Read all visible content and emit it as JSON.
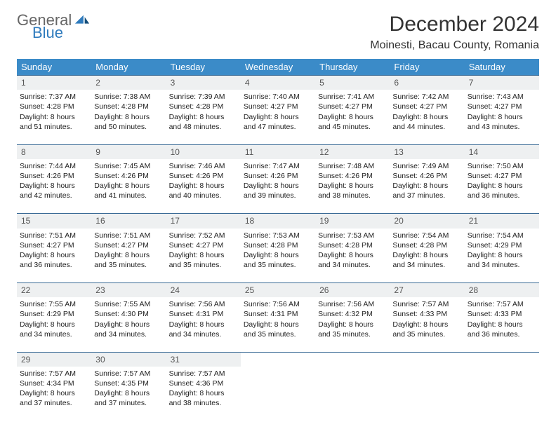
{
  "logo": {
    "general": "General",
    "blue": "Blue"
  },
  "title": "December 2024",
  "location": "Moinesti, Bacau County, Romania",
  "colors": {
    "header_bg": "#3b8bc8",
    "header_text": "#ffffff",
    "daynum_bg": "#eef0f1",
    "daynum_border": "#396a95",
    "logo_gray": "#666666",
    "logo_blue": "#2f7bbd"
  },
  "weekdays": [
    "Sunday",
    "Monday",
    "Tuesday",
    "Wednesday",
    "Thursday",
    "Friday",
    "Saturday"
  ],
  "weeks": [
    [
      {
        "n": "1",
        "sr": "7:37 AM",
        "ss": "4:28 PM",
        "dh": "8",
        "dm": "51"
      },
      {
        "n": "2",
        "sr": "7:38 AM",
        "ss": "4:28 PM",
        "dh": "8",
        "dm": "50"
      },
      {
        "n": "3",
        "sr": "7:39 AM",
        "ss": "4:28 PM",
        "dh": "8",
        "dm": "48"
      },
      {
        "n": "4",
        "sr": "7:40 AM",
        "ss": "4:27 PM",
        "dh": "8",
        "dm": "47"
      },
      {
        "n": "5",
        "sr": "7:41 AM",
        "ss": "4:27 PM",
        "dh": "8",
        "dm": "45"
      },
      {
        "n": "6",
        "sr": "7:42 AM",
        "ss": "4:27 PM",
        "dh": "8",
        "dm": "44"
      },
      {
        "n": "7",
        "sr": "7:43 AM",
        "ss": "4:27 PM",
        "dh": "8",
        "dm": "43"
      }
    ],
    [
      {
        "n": "8",
        "sr": "7:44 AM",
        "ss": "4:26 PM",
        "dh": "8",
        "dm": "42"
      },
      {
        "n": "9",
        "sr": "7:45 AM",
        "ss": "4:26 PM",
        "dh": "8",
        "dm": "41"
      },
      {
        "n": "10",
        "sr": "7:46 AM",
        "ss": "4:26 PM",
        "dh": "8",
        "dm": "40"
      },
      {
        "n": "11",
        "sr": "7:47 AM",
        "ss": "4:26 PM",
        "dh": "8",
        "dm": "39"
      },
      {
        "n": "12",
        "sr": "7:48 AM",
        "ss": "4:26 PM",
        "dh": "8",
        "dm": "38"
      },
      {
        "n": "13",
        "sr": "7:49 AM",
        "ss": "4:26 PM",
        "dh": "8",
        "dm": "37"
      },
      {
        "n": "14",
        "sr": "7:50 AM",
        "ss": "4:27 PM",
        "dh": "8",
        "dm": "36"
      }
    ],
    [
      {
        "n": "15",
        "sr": "7:51 AM",
        "ss": "4:27 PM",
        "dh": "8",
        "dm": "36"
      },
      {
        "n": "16",
        "sr": "7:51 AM",
        "ss": "4:27 PM",
        "dh": "8",
        "dm": "35"
      },
      {
        "n": "17",
        "sr": "7:52 AM",
        "ss": "4:27 PM",
        "dh": "8",
        "dm": "35"
      },
      {
        "n": "18",
        "sr": "7:53 AM",
        "ss": "4:28 PM",
        "dh": "8",
        "dm": "35"
      },
      {
        "n": "19",
        "sr": "7:53 AM",
        "ss": "4:28 PM",
        "dh": "8",
        "dm": "34"
      },
      {
        "n": "20",
        "sr": "7:54 AM",
        "ss": "4:28 PM",
        "dh": "8",
        "dm": "34"
      },
      {
        "n": "21",
        "sr": "7:54 AM",
        "ss": "4:29 PM",
        "dh": "8",
        "dm": "34"
      }
    ],
    [
      {
        "n": "22",
        "sr": "7:55 AM",
        "ss": "4:29 PM",
        "dh": "8",
        "dm": "34"
      },
      {
        "n": "23",
        "sr": "7:55 AM",
        "ss": "4:30 PM",
        "dh": "8",
        "dm": "34"
      },
      {
        "n": "24",
        "sr": "7:56 AM",
        "ss": "4:31 PM",
        "dh": "8",
        "dm": "34"
      },
      {
        "n": "25",
        "sr": "7:56 AM",
        "ss": "4:31 PM",
        "dh": "8",
        "dm": "35"
      },
      {
        "n": "26",
        "sr": "7:56 AM",
        "ss": "4:32 PM",
        "dh": "8",
        "dm": "35"
      },
      {
        "n": "27",
        "sr": "7:57 AM",
        "ss": "4:33 PM",
        "dh": "8",
        "dm": "35"
      },
      {
        "n": "28",
        "sr": "7:57 AM",
        "ss": "4:33 PM",
        "dh": "8",
        "dm": "36"
      }
    ],
    [
      {
        "n": "29",
        "sr": "7:57 AM",
        "ss": "4:34 PM",
        "dh": "8",
        "dm": "37"
      },
      {
        "n": "30",
        "sr": "7:57 AM",
        "ss": "4:35 PM",
        "dh": "8",
        "dm": "37"
      },
      {
        "n": "31",
        "sr": "7:57 AM",
        "ss": "4:36 PM",
        "dh": "8",
        "dm": "38"
      },
      null,
      null,
      null,
      null
    ]
  ],
  "labels": {
    "sunrise": "Sunrise:",
    "sunset": "Sunset:",
    "daylight": "Daylight:",
    "hours": "hours",
    "and": "and",
    "minutes": "minutes."
  }
}
